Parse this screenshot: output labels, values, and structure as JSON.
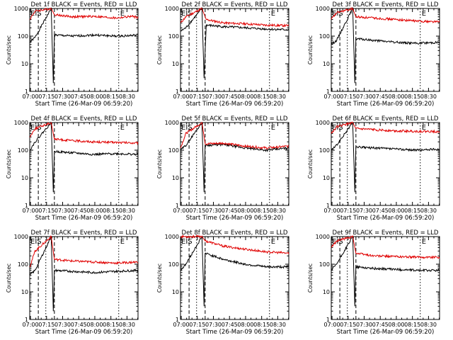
{
  "chart_data": [
    {
      "type": "line",
      "title": "Det 1f BLACK = Events, RED = LLD",
      "xlabel": "Start Time (26-Mar-09 06:59:20)",
      "ylabel": "Counts/sec",
      "x_ticks": [
        "07:00",
        "07:15",
        "07:30",
        "07:45",
        "08:00",
        "08:15",
        "08:30"
      ],
      "y_ticks": [
        "1",
        "10",
        "100",
        "1000"
      ],
      "ylim": [
        1,
        1000
      ],
      "yscale": "log",
      "markers": [
        "EIS",
        "E"
      ],
      "series": [
        {
          "color": "#000000",
          "values": [
            {
              "t": 0,
              "v": 60
            },
            {
              "t": 5,
              "v": 90
            },
            {
              "t": 20,
              "v": 1000
            },
            {
              "t": 22,
              "v": 2
            },
            {
              "t": 23,
              "v": 110
            },
            {
              "t": 40,
              "v": 100
            },
            {
              "t": 60,
              "v": 110
            },
            {
              "t": 80,
              "v": 100
            },
            {
              "t": 95,
              "v": 105
            },
            {
              "t": 101,
              "v": 110
            }
          ]
        },
        {
          "color": "#e00000",
          "values": [
            {
              "t": 0,
              "v": 400
            },
            {
              "t": 5,
              "v": 800
            },
            {
              "t": 20,
              "v": 1000
            },
            {
              "t": 23,
              "v": 600
            },
            {
              "t": 40,
              "v": 500
            },
            {
              "t": 60,
              "v": 520
            },
            {
              "t": 80,
              "v": 450
            },
            {
              "t": 95,
              "v": 520
            },
            {
              "t": 101,
              "v": 480
            }
          ]
        }
      ]
    },
    {
      "type": "line",
      "title": "Det 2f BLACK = Events, RED = LLD",
      "xlabel": "Start Time (26-Mar-09 06:59:20)",
      "ylabel": "Counts/sec",
      "x_ticks": [
        "07:00",
        "07:15",
        "07:30",
        "07:45",
        "08:00",
        "08:15",
        "08:30"
      ],
      "y_ticks": [
        "1",
        "10",
        "100",
        "1000"
      ],
      "ylim": [
        1,
        1000
      ],
      "yscale": "log",
      "markers": [
        "EIS",
        "E"
      ],
      "series": [
        {
          "color": "#000000",
          "values": [
            {
              "t": 0,
              "v": 150
            },
            {
              "t": 5,
              "v": 200
            },
            {
              "t": 20,
              "v": 1000
            },
            {
              "t": 22,
              "v": 3
            },
            {
              "t": 24,
              "v": 250
            },
            {
              "t": 40,
              "v": 220
            },
            {
              "t": 60,
              "v": 200
            },
            {
              "t": 80,
              "v": 180
            },
            {
              "t": 101,
              "v": 170
            }
          ]
        },
        {
          "color": "#e00000",
          "values": [
            {
              "t": 0,
              "v": 300
            },
            {
              "t": 5,
              "v": 500
            },
            {
              "t": 20,
              "v": 1000
            },
            {
              "t": 24,
              "v": 400
            },
            {
              "t": 40,
              "v": 300
            },
            {
              "t": 60,
              "v": 280
            },
            {
              "t": 80,
              "v": 250
            },
            {
              "t": 101,
              "v": 240
            }
          ]
        }
      ]
    },
    {
      "type": "line",
      "title": "Det 3f BLACK = Events, RED = LLD",
      "xlabel": "Start Time (26-Mar-09 06:59:20)",
      "ylabel": "Counts/sec",
      "x_ticks": [
        "07:00",
        "07:15",
        "07:30",
        "07:45",
        "08:00",
        "08:15",
        "08:30"
      ],
      "y_ticks": [
        "1",
        "10",
        "100",
        "1000"
      ],
      "ylim": [
        1,
        1000
      ],
      "yscale": "log",
      "markers": [
        "EIS",
        "E"
      ],
      "series": [
        {
          "color": "#000000",
          "values": [
            {
              "t": 0,
              "v": 50
            },
            {
              "t": 5,
              "v": 70
            },
            {
              "t": 20,
              "v": 1000
            },
            {
              "t": 22,
              "v": 2
            },
            {
              "t": 23,
              "v": 80
            },
            {
              "t": 40,
              "v": 70
            },
            {
              "t": 60,
              "v": 60
            },
            {
              "t": 80,
              "v": 55
            },
            {
              "t": 101,
              "v": 60
            }
          ]
        },
        {
          "color": "#e00000",
          "values": [
            {
              "t": 0,
              "v": 400
            },
            {
              "t": 5,
              "v": 700
            },
            {
              "t": 20,
              "v": 1000
            },
            {
              "t": 23,
              "v": 500
            },
            {
              "t": 40,
              "v": 450
            },
            {
              "t": 60,
              "v": 400
            },
            {
              "t": 80,
              "v": 350
            },
            {
              "t": 101,
              "v": 330
            }
          ]
        }
      ]
    },
    {
      "type": "line",
      "title": "Det 4f BLACK = Events, RED = LLD",
      "xlabel": "Start Time (26-Mar-09 06:59:20)",
      "ylabel": "Counts/sec",
      "x_ticks": [
        "07:00",
        "07:15",
        "07:30",
        "07:45",
        "08:00",
        "08:15",
        "08:30"
      ],
      "y_ticks": [
        "1",
        "10",
        "100",
        "1000"
      ],
      "ylim": [
        1,
        1000
      ],
      "yscale": "log",
      "markers": [
        "EIS",
        "E"
      ],
      "series": [
        {
          "color": "#000000",
          "values": [
            {
              "t": 0,
              "v": 100
            },
            {
              "t": 5,
              "v": 200
            },
            {
              "t": 20,
              "v": 1000
            },
            {
              "t": 22,
              "v": 3
            },
            {
              "t": 23,
              "v": 90
            },
            {
              "t": 40,
              "v": 80
            },
            {
              "t": 60,
              "v": 70
            },
            {
              "t": 80,
              "v": 75
            },
            {
              "t": 101,
              "v": 70
            }
          ]
        },
        {
          "color": "#e00000",
          "values": [
            {
              "t": 0,
              "v": 300
            },
            {
              "t": 5,
              "v": 600
            },
            {
              "t": 20,
              "v": 1000
            },
            {
              "t": 23,
              "v": 250
            },
            {
              "t": 40,
              "v": 220
            },
            {
              "t": 60,
              "v": 200
            },
            {
              "t": 80,
              "v": 190
            },
            {
              "t": 101,
              "v": 180
            }
          ]
        }
      ]
    },
    {
      "type": "line",
      "title": "Det 5f BLACK = Events, RED = LLD",
      "xlabel": "Start Time (26-Mar-09 06:59:20)",
      "ylabel": "Counts/sec",
      "x_ticks": [
        "07:00",
        "07:15",
        "07:30",
        "07:45",
        "08:00",
        "08:15",
        "08:30"
      ],
      "y_ticks": [
        "1",
        "10",
        "100",
        "1000"
      ],
      "ylim": [
        1,
        1000
      ],
      "yscale": "log",
      "markers": [
        "EIS",
        "E"
      ],
      "series": [
        {
          "color": "#000000",
          "values": [
            {
              "t": 0,
              "v": 100
            },
            {
              "t": 5,
              "v": 150
            },
            {
              "t": 20,
              "v": 1000
            },
            {
              "t": 22,
              "v": 3
            },
            {
              "t": 23,
              "v": 150
            },
            {
              "t": 40,
              "v": 160
            },
            {
              "t": 60,
              "v": 120
            },
            {
              "t": 80,
              "v": 100
            },
            {
              "t": 101,
              "v": 120
            }
          ]
        },
        {
          "color": "#e00000",
          "values": [
            {
              "t": 0,
              "v": 120
            },
            {
              "t": 5,
              "v": 400
            },
            {
              "t": 20,
              "v": 1000
            },
            {
              "t": 23,
              "v": 170
            },
            {
              "t": 40,
              "v": 180
            },
            {
              "t": 60,
              "v": 140
            },
            {
              "t": 80,
              "v": 120
            },
            {
              "t": 101,
              "v": 140
            }
          ]
        }
      ]
    },
    {
      "type": "line",
      "title": "Det 6f BLACK = Events, RED = LLD",
      "xlabel": "Start Time (26-Mar-09 06:59:20)",
      "ylabel": "Counts/sec",
      "x_ticks": [
        "07:00",
        "07:15",
        "07:30",
        "07:45",
        "08:00",
        "08:15",
        "08:30"
      ],
      "y_ticks": [
        "1",
        "10",
        "100",
        "1000"
      ],
      "ylim": [
        1,
        1000
      ],
      "yscale": "log",
      "markers": [
        "EIS",
        "E"
      ],
      "series": [
        {
          "color": "#000000",
          "values": [
            {
              "t": 0,
              "v": 100
            },
            {
              "t": 5,
              "v": 150
            },
            {
              "t": 20,
              "v": 1000
            },
            {
              "t": 22,
              "v": 3
            },
            {
              "t": 23,
              "v": 130
            },
            {
              "t": 40,
              "v": 120
            },
            {
              "t": 60,
              "v": 110
            },
            {
              "t": 80,
              "v": 100
            },
            {
              "t": 101,
              "v": 110
            }
          ]
        },
        {
          "color": "#e00000",
          "values": [
            {
              "t": 0,
              "v": 400
            },
            {
              "t": 5,
              "v": 700
            },
            {
              "t": 20,
              "v": 1000
            },
            {
              "t": 23,
              "v": 600
            },
            {
              "t": 40,
              "v": 550
            },
            {
              "t": 60,
              "v": 500
            },
            {
              "t": 80,
              "v": 480
            },
            {
              "t": 101,
              "v": 470
            }
          ]
        }
      ]
    },
    {
      "type": "line",
      "title": "Det 7f BLACK = Events, RED = LLD",
      "xlabel": "Start Time (26-Mar-09 06:59:20)",
      "ylabel": "Counts/sec",
      "x_ticks": [
        "07:00",
        "07:15",
        "07:30",
        "07:45",
        "08:00",
        "08:15",
        "08:30"
      ],
      "y_ticks": [
        "1",
        "10",
        "100",
        "1000"
      ],
      "ylim": [
        1,
        1000
      ],
      "yscale": "log",
      "markers": [
        "EIS",
        "E"
      ],
      "series": [
        {
          "color": "#000000",
          "values": [
            {
              "t": 0,
              "v": 40
            },
            {
              "t": 5,
              "v": 60
            },
            {
              "t": 20,
              "v": 1000
            },
            {
              "t": 22,
              "v": 2
            },
            {
              "t": 23,
              "v": 60
            },
            {
              "t": 40,
              "v": 55
            },
            {
              "t": 60,
              "v": 50
            },
            {
              "t": 80,
              "v": 55
            },
            {
              "t": 101,
              "v": 60
            }
          ]
        },
        {
          "color": "#e00000",
          "values": [
            {
              "t": 0,
              "v": 80
            },
            {
              "t": 5,
              "v": 300
            },
            {
              "t": 20,
              "v": 1000
            },
            {
              "t": 23,
              "v": 150
            },
            {
              "t": 40,
              "v": 130
            },
            {
              "t": 60,
              "v": 120
            },
            {
              "t": 80,
              "v": 110
            },
            {
              "t": 101,
              "v": 120
            }
          ]
        }
      ]
    },
    {
      "type": "line",
      "title": "Det 8f BLACK = Events, RED = LLD",
      "xlabel": "Start Time (26-Mar-09 06:59:20)",
      "ylabel": "Counts/sec",
      "x_ticks": [
        "07:00",
        "07:15",
        "07:30",
        "07:45",
        "08:00",
        "08:15",
        "08:30"
      ],
      "y_ticks": [
        "1",
        "10",
        "100",
        "1000"
      ],
      "ylim": [
        1,
        1000
      ],
      "yscale": "log",
      "markers": [
        "EIS",
        "E"
      ],
      "series": [
        {
          "color": "#000000",
          "values": [
            {
              "t": 0,
              "v": 60
            },
            {
              "t": 5,
              "v": 100
            },
            {
              "t": 20,
              "v": 1000
            },
            {
              "t": 22,
              "v": 3
            },
            {
              "t": 23,
              "v": 250
            },
            {
              "t": 40,
              "v": 150
            },
            {
              "t": 60,
              "v": 100
            },
            {
              "t": 80,
              "v": 80
            },
            {
              "t": 101,
              "v": 80
            }
          ]
        },
        {
          "color": "#e00000",
          "values": [
            {
              "t": 0,
              "v": 1000
            },
            {
              "t": 5,
              "v": 1000
            },
            {
              "t": 20,
              "v": 1000
            },
            {
              "t": 23,
              "v": 700
            },
            {
              "t": 40,
              "v": 450
            },
            {
              "t": 60,
              "v": 350
            },
            {
              "t": 80,
              "v": 280
            },
            {
              "t": 101,
              "v": 250
            }
          ]
        }
      ]
    },
    {
      "type": "line",
      "title": "Det 9f BLACK = Events, RED = LLD",
      "xlabel": "Start Time (26-Mar-09 06:59:20)",
      "ylabel": "Counts/sec",
      "x_ticks": [
        "07:00",
        "07:15",
        "07:30",
        "07:45",
        "08:00",
        "08:15",
        "08:30"
      ],
      "y_ticks": [
        "1",
        "10",
        "100",
        "1000"
      ],
      "ylim": [
        1,
        1000
      ],
      "yscale": "log",
      "markers": [
        "EIS",
        "E"
      ],
      "series": [
        {
          "color": "#000000",
          "values": [
            {
              "t": 0,
              "v": 60
            },
            {
              "t": 5,
              "v": 100
            },
            {
              "t": 20,
              "v": 1000
            },
            {
              "t": 22,
              "v": 3
            },
            {
              "t": 23,
              "v": 80
            },
            {
              "t": 40,
              "v": 70
            },
            {
              "t": 60,
              "v": 65
            },
            {
              "t": 80,
              "v": 60
            },
            {
              "t": 101,
              "v": 60
            }
          ]
        },
        {
          "color": "#e00000",
          "values": [
            {
              "t": 0,
              "v": 400
            },
            {
              "t": 5,
              "v": 700
            },
            {
              "t": 20,
              "v": 1000
            },
            {
              "t": 23,
              "v": 250
            },
            {
              "t": 40,
              "v": 200
            },
            {
              "t": 60,
              "v": 190
            },
            {
              "t": 80,
              "v": 180
            },
            {
              "t": 101,
              "v": 180
            }
          ]
        }
      ]
    }
  ]
}
